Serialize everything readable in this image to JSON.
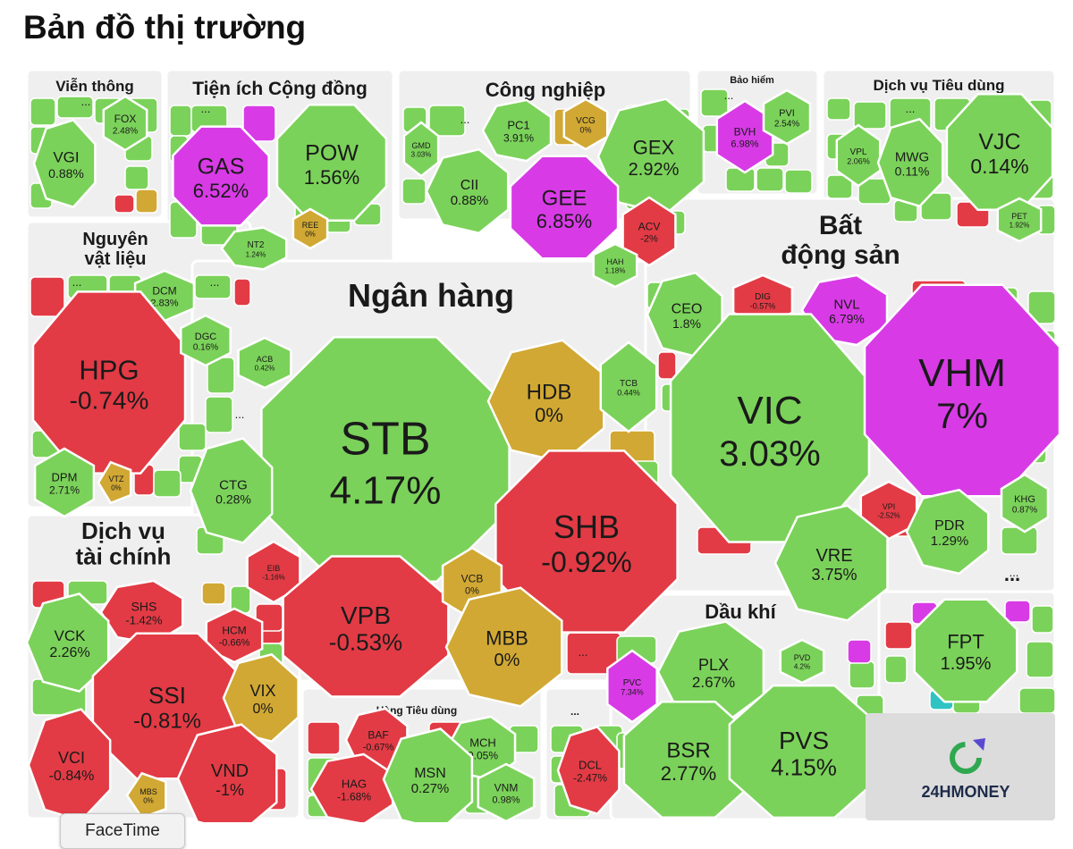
{
  "page_title": "Bản đồ thị trường",
  "tooltip": "FaceTime",
  "logo_text": "24HMONEY",
  "colors": {
    "up": "#7bd25a",
    "down": "#e23b45",
    "flat": "#d1a833",
    "ceiling": "#d83be6",
    "floor": "#2fc3c3",
    "sector_bg": "#efefef",
    "cell_border": "#ffffff",
    "text": "#1a1a1a"
  },
  "chart_data": {
    "type": "treemap",
    "title": "Bản đồ thị trường",
    "more_label": "...",
    "sectors": [
      {
        "name": "Viễn thông",
        "stocks": [
          {
            "ticker": "VGI",
            "change": "0.88%"
          },
          {
            "ticker": "FOX",
            "change": "2.48%"
          }
        ]
      },
      {
        "name": "Tiện ích Cộng đồng",
        "stocks": [
          {
            "ticker": "GAS",
            "change": "6.52%"
          },
          {
            "ticker": "POW",
            "change": "1.56%"
          },
          {
            "ticker": "NT2",
            "change": "1.24%"
          },
          {
            "ticker": "REE",
            "change": "0%"
          }
        ]
      },
      {
        "name": "Công nghiệp",
        "stocks": [
          {
            "ticker": "PC1",
            "change": "3.91%"
          },
          {
            "ticker": "VCG",
            "change": "0%"
          },
          {
            "ticker": "GEX",
            "change": "2.92%"
          },
          {
            "ticker": "GMD",
            "change": "3.03%"
          },
          {
            "ticker": "CII",
            "change": "0.88%"
          },
          {
            "ticker": "GEE",
            "change": "6.85%"
          },
          {
            "ticker": "ACV",
            "change": "-2%"
          },
          {
            "ticker": "HAH",
            "change": "1.18%"
          }
        ]
      },
      {
        "name": "Bảo hiểm",
        "stocks": [
          {
            "ticker": "BVH",
            "change": "6.98%"
          },
          {
            "ticker": "PVI",
            "change": "2.54%"
          }
        ]
      },
      {
        "name": "Dịch vụ Tiêu dùng",
        "stocks": [
          {
            "ticker": "VPL",
            "change": "2.06%"
          },
          {
            "ticker": "MWG",
            "change": "0.11%"
          },
          {
            "ticker": "VJC",
            "change": "0.14%"
          },
          {
            "ticker": "PET",
            "change": "1.92%"
          }
        ]
      },
      {
        "name": "Nguyên vật liệu",
        "stocks": [
          {
            "ticker": "DCM",
            "change": "2.83%"
          },
          {
            "ticker": "HPG",
            "change": "-0.74%"
          },
          {
            "ticker": "DGC",
            "change": "0.16%"
          },
          {
            "ticker": "DPM",
            "change": "2.71%"
          },
          {
            "ticker": "VTZ",
            "change": "0%"
          }
        ]
      },
      {
        "name": "Ngân hàng",
        "stocks": [
          {
            "ticker": "STB",
            "change": "4.17%"
          },
          {
            "ticker": "HDB",
            "change": "0%"
          },
          {
            "ticker": "TCB",
            "change": "0.44%"
          },
          {
            "ticker": "ACB",
            "change": "0.42%"
          },
          {
            "ticker": "CTG",
            "change": "0.28%"
          },
          {
            "ticker": "SHB",
            "change": "-0.92%"
          },
          {
            "ticker": "EIB",
            "change": "-1.16%"
          },
          {
            "ticker": "VPB",
            "change": "-0.53%"
          },
          {
            "ticker": "VCB",
            "change": "0%"
          },
          {
            "ticker": "MBB",
            "change": "0%"
          }
        ]
      },
      {
        "name": "Bất động sản",
        "stocks": [
          {
            "ticker": "CEO",
            "change": "1.8%"
          },
          {
            "ticker": "DIG",
            "change": "-0.57%"
          },
          {
            "ticker": "NVL",
            "change": "6.79%"
          },
          {
            "ticker": "VIC",
            "change": "3.03%"
          },
          {
            "ticker": "VHM",
            "change": "7%"
          },
          {
            "ticker": "VPI",
            "change": "-2.52%"
          },
          {
            "ticker": "KHG",
            "change": "0.87%"
          },
          {
            "ticker": "PDR",
            "change": "1.29%"
          },
          {
            "ticker": "VRE",
            "change": "3.75%"
          }
        ]
      },
      {
        "name": "Dịch vụ tài chính",
        "stocks": [
          {
            "ticker": "SHS",
            "change": "-1.42%"
          },
          {
            "ticker": "VCK",
            "change": "2.26%"
          },
          {
            "ticker": "HCM",
            "change": "-0.66%"
          },
          {
            "ticker": "SSI",
            "change": "-0.81%"
          },
          {
            "ticker": "VIX",
            "change": "0%"
          },
          {
            "ticker": "VCI",
            "change": "-0.84%"
          },
          {
            "ticker": "VND",
            "change": "-1%"
          },
          {
            "ticker": "MBS",
            "change": "0%"
          }
        ]
      },
      {
        "name": "Hàng Tiêu dùng",
        "stocks": [
          {
            "ticker": "BAF",
            "change": "-0.67%"
          },
          {
            "ticker": "MCH",
            "change": "0.05%"
          },
          {
            "ticker": "HAG",
            "change": "-1.68%"
          },
          {
            "ticker": "MSN",
            "change": "0.27%"
          },
          {
            "ticker": "VNM",
            "change": "0.98%"
          }
        ]
      },
      {
        "name": "...",
        "stocks": [
          {
            "ticker": "DCL",
            "change": "-2.47%"
          }
        ]
      },
      {
        "name": "Dầu khí",
        "stocks": [
          {
            "ticker": "PLX",
            "change": "2.67%"
          },
          {
            "ticker": "PVD",
            "change": "4.2%"
          },
          {
            "ticker": "PVC",
            "change": "7.34%"
          },
          {
            "ticker": "BSR",
            "change": "2.77%"
          },
          {
            "ticker": "PVS",
            "change": "4.15%"
          }
        ]
      },
      {
        "name": "...",
        "stocks": [
          {
            "ticker": "FPT",
            "change": "1.95%"
          }
        ]
      }
    ]
  }
}
